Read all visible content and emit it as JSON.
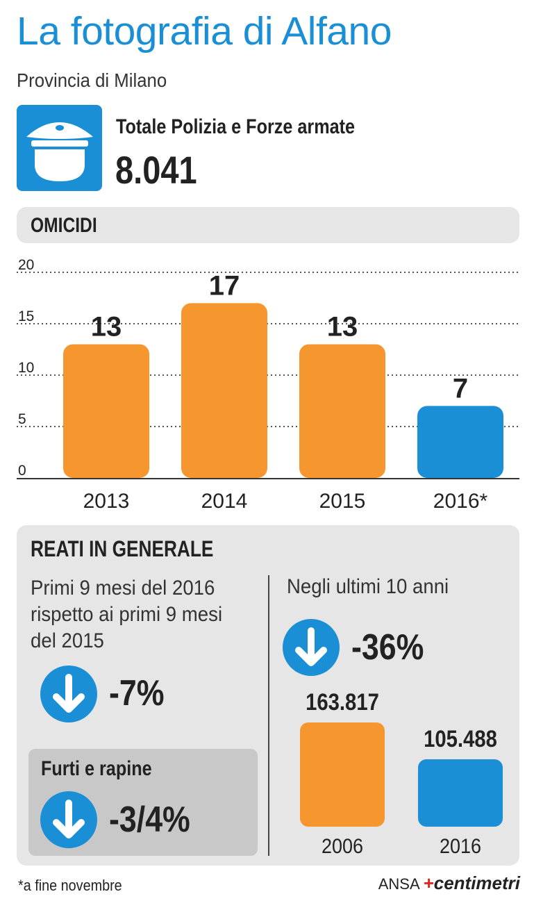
{
  "title": "La fotografia di Alfano",
  "subtitle": "Provincia di Milano",
  "police": {
    "icon": "police-cap-icon",
    "label": "Totale Polizia e Forze armate",
    "value": "8.041"
  },
  "colors": {
    "blue": "#1a8fd6",
    "orange": "#f5962e",
    "panel": "#e6e6e6",
    "subpanel": "#c8c8c8"
  },
  "section_omicidi": "OMICIDI",
  "chart_data": {
    "type": "bar",
    "title": "OMICIDI",
    "categories": [
      "2013",
      "2014",
      "2015",
      "2016*"
    ],
    "values": [
      13,
      17,
      13,
      7
    ],
    "value_labels": [
      "13",
      "17",
      "13",
      "7"
    ],
    "bar_colors": [
      "#f5962e",
      "#f5962e",
      "#f5962e",
      "#1a8fd6"
    ],
    "ylim": [
      0,
      20
    ],
    "yticks": [
      0,
      5,
      10,
      15,
      20
    ],
    "grid": true,
    "xlabel": "",
    "ylabel": ""
  },
  "reati": {
    "title": "REATI IN GENERALE",
    "left": {
      "description": "Primi 9 mesi del 2016 rispetto ai primi 9 mesi del 2015",
      "change": "-7%",
      "icon": "down-arrow-icon",
      "furti": {
        "title": "Furti e rapine",
        "change": "-3/4%"
      }
    },
    "right": {
      "description": "Negli ultimi 10 anni",
      "change": "-36%",
      "icon": "down-arrow-icon",
      "chart_data": {
        "type": "bar",
        "categories": [
          "2006",
          "2016"
        ],
        "values": [
          163817,
          105488
        ],
        "value_labels": [
          "163.817",
          "105.488"
        ],
        "bar_colors": [
          "#f5962e",
          "#1a8fd6"
        ]
      }
    }
  },
  "footnote": "*a fine novembre",
  "brand": {
    "source": "ANSA",
    "logo": "centimetri"
  }
}
